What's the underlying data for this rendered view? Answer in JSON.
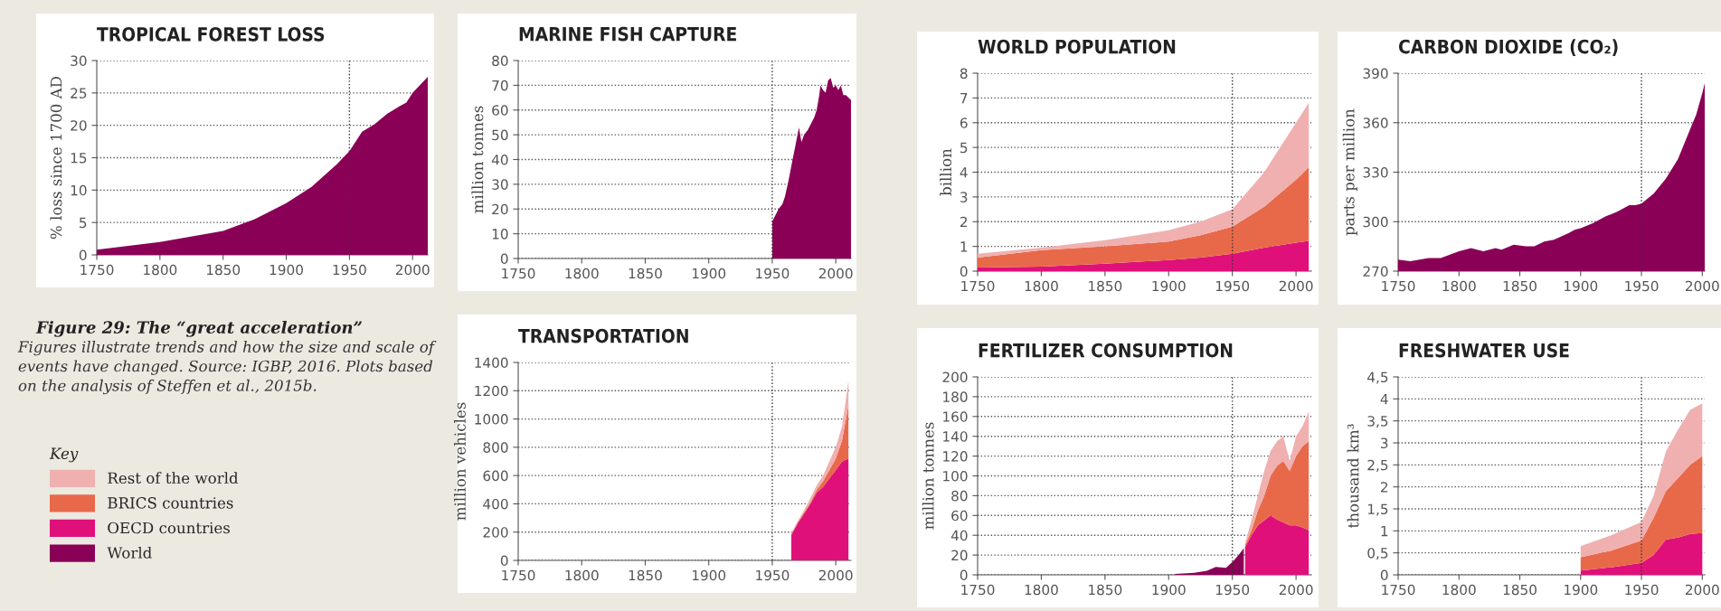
{
  "chart_data": [
    {
      "type": "area",
      "title": "TROPICAL FOREST LOSS",
      "ylabel": "% loss since 1700 AD",
      "xlim": [
        1750,
        2012
      ],
      "ylim": [
        0,
        30
      ],
      "xticks": [
        1750,
        1800,
        1850,
        1900,
        1950,
        2000
      ],
      "yticks": [
        0,
        5,
        10,
        15,
        20,
        25,
        30
      ],
      "grid": "y",
      "ref_lines": [
        {
          "axis": "x",
          "value": 1950,
          "line_style": "dotted"
        }
      ],
      "series": [
        {
          "color": "#8b0057",
          "x": [
            1750,
            1800,
            1850,
            1875,
            1900,
            1920,
            1940,
            1950,
            1960,
            1970,
            1980,
            1990,
            1995,
            2000,
            2012
          ],
          "values": [
            0.8,
            2,
            3.7,
            5.5,
            8,
            10.5,
            14,
            16,
            19,
            20.2,
            21.8,
            23,
            23.5,
            25,
            27.5
          ]
        }
      ]
    },
    {
      "type": "other",
      "title": "Figure 29: The “great acceleration”",
      "annotations": [
        "Figures illustrate trends and how the size and scale of events have changed. Source: IGBP, 2016. Plots based on the analysis of Steffen et al., 2015b."
      ]
    },
    {
      "type": "area",
      "title": "MARINE FISH CAPTURE",
      "ylabel": "million tonnes",
      "xlim": [
        1750,
        2012
      ],
      "ylim": [
        0,
        80
      ],
      "xticks": [
        1750,
        1800,
        1850,
        1900,
        1950,
        2000
      ],
      "yticks": [
        0,
        10,
        20,
        30,
        40,
        50,
        60,
        70,
        80
      ],
      "grid": "y",
      "ref_lines": [
        {
          "axis": "x",
          "value": 1950,
          "line_style": "dotted"
        }
      ],
      "series": [
        {
          "color": "#8b0057",
          "x": [
            1950,
            1952,
            1955,
            1958,
            1960,
            1963,
            1966,
            1968,
            1971,
            1973,
            1975,
            1978,
            1980,
            1983,
            1985,
            1987,
            1988,
            1990,
            1992,
            1994,
            1996,
            1998,
            2000,
            2002,
            2004,
            2006,
            2008,
            2012
          ],
          "values": [
            15,
            17,
            20,
            22,
            25,
            32,
            40,
            45,
            53,
            47,
            50,
            52,
            54,
            57,
            60,
            66,
            70,
            68,
            67,
            72,
            73,
            69,
            70,
            68,
            70,
            66,
            66,
            64
          ]
        }
      ]
    },
    {
      "type": "area",
      "title": "TRANSPORTATION",
      "ylabel": "million vehicles",
      "xlim": [
        1750,
        2012
      ],
      "ylim": [
        0,
        1400
      ],
      "xticks": [
        1750,
        1800,
        1850,
        1900,
        1950,
        2000
      ],
      "yticks": [
        0,
        200,
        400,
        600,
        800,
        1000,
        1200,
        1400
      ],
      "grid": "y",
      "stacked": true,
      "ref_lines": [
        {
          "axis": "x",
          "value": 1950,
          "line_style": "dotted"
        }
      ],
      "x": [
        1965,
        1970,
        1975,
        1980,
        1985,
        1990,
        1995,
        2000,
        2005,
        2010
      ],
      "series": [
        {
          "color": "#e0107a",
          "values": [
            180,
            260,
            330,
            400,
            480,
            520,
            580,
            640,
            700,
            720
          ]
        },
        {
          "color": "#e8694a",
          "values": [
            5,
            8,
            10,
            10,
            20,
            40,
            60,
            80,
            150,
            380
          ]
        },
        {
          "color": "#f0b0b0",
          "values": [
            10,
            10,
            15,
            30,
            30,
            40,
            60,
            80,
            100,
            172
          ]
        }
      ]
    },
    {
      "type": "area",
      "title": "WORLD POPULATION",
      "ylabel": "billion",
      "xlim": [
        1750,
        2012
      ],
      "ylim": [
        0,
        8
      ],
      "xticks": [
        1750,
        1800,
        1850,
        1900,
        1950,
        2000
      ],
      "yticks": [
        0,
        1,
        2,
        3,
        4,
        5,
        6,
        7,
        8
      ],
      "grid": "y",
      "stacked": true,
      "ref_lines": [
        {
          "axis": "x",
          "value": 1950,
          "line_style": "dotted"
        }
      ],
      "x": [
        1750,
        1800,
        1850,
        1900,
        1925,
        1950,
        1975,
        2000,
        2010
      ],
      "series": [
        {
          "color": "#e0107a",
          "values": [
            0.15,
            0.18,
            0.3,
            0.45,
            0.55,
            0.7,
            0.95,
            1.15,
            1.22
          ]
        },
        {
          "color": "#e8694a",
          "values": [
            0.4,
            0.67,
            0.7,
            0.75,
            0.9,
            1.1,
            1.65,
            2.55,
            2.98
          ]
        },
        {
          "color": "#f0b0b0",
          "values": [
            0.15,
            0.1,
            0.25,
            0.45,
            0.55,
            0.7,
            1.4,
            2.3,
            2.6
          ]
        }
      ]
    },
    {
      "type": "area",
      "title": "CARBON DIOXIDE (CO₂)",
      "ylabel": "parts per million",
      "xlim": [
        1750,
        2002
      ],
      "ylim": [
        270,
        390
      ],
      "xticks": [
        1750,
        1800,
        1850,
        1900,
        1950,
        2000
      ],
      "yticks": [
        270,
        300,
        330,
        360,
        390
      ],
      "grid": "y",
      "ref_lines": [
        {
          "axis": "x",
          "value": 1950,
          "line_style": "dotted"
        }
      ],
      "series": [
        {
          "color": "#8b0057",
          "x": [
            1750,
            1760,
            1775,
            1785,
            1800,
            1810,
            1820,
            1830,
            1835,
            1845,
            1855,
            1862,
            1870,
            1878,
            1890,
            1895,
            1900,
            1910,
            1920,
            1930,
            1940,
            1945,
            1950,
            1960,
            1970,
            1980,
            1990,
            1995,
            2000,
            2002
          ],
          "values": [
            277,
            276,
            278,
            278,
            282,
            284,
            282,
            284,
            283,
            286,
            285,
            285,
            288,
            289,
            293,
            295,
            296,
            299,
            303,
            306,
            310,
            310,
            311,
            317,
            326,
            338,
            356,
            365,
            378,
            384
          ]
        }
      ]
    },
    {
      "type": "area",
      "title": "FERTILIZER CONSUMPTION",
      "ylabel": "million tonnes",
      "xlim": [
        1750,
        2012
      ],
      "ylim": [
        0,
        200
      ],
      "xticks": [
        1750,
        1800,
        1850,
        1900,
        1950,
        2000
      ],
      "yticks": [
        0,
        20,
        40,
        60,
        80,
        100,
        120,
        140,
        160,
        180,
        200
      ],
      "grid": "y",
      "stacked": true,
      "legend": "left",
      "legend_title": "Key",
      "ref_lines": [
        {
          "axis": "x",
          "value": 1950,
          "line_style": "dotted"
        }
      ],
      "x": [
        1905,
        1920,
        1930,
        1937,
        1945,
        1950,
        1955,
        1959,
        1960,
        1965,
        1970,
        1975,
        1980,
        1985,
        1990,
        1995,
        2000,
        2005,
        2010
      ],
      "series": [
        {
          "name": "World",
          "color": "#8b0057",
          "values": [
            1,
            2,
            4,
            8,
            7,
            13,
            20,
            27,
            null,
            null,
            null,
            null,
            null,
            null,
            null,
            null,
            null,
            null,
            null
          ]
        },
        {
          "name": "OECD countries",
          "color": "#e0107a",
          "values": [
            null,
            null,
            null,
            null,
            null,
            null,
            null,
            null,
            28,
            40,
            50,
            55,
            60,
            56,
            53,
            50,
            50,
            48,
            45
          ]
        },
        {
          "name": "BRICS countries",
          "color": "#e8694a",
          "values": [
            null,
            null,
            null,
            null,
            null,
            null,
            null,
            null,
            2,
            5,
            15,
            25,
            40,
            54,
            62,
            55,
            70,
            82,
            90
          ]
        },
        {
          "name": "Rest of the world",
          "color": "#f0b0b0",
          "values": [
            null,
            null,
            null,
            null,
            null,
            null,
            null,
            null,
            2,
            10,
            15,
            25,
            25,
            25,
            25,
            10,
            20,
            20,
            30
          ]
        }
      ]
    },
    {
      "type": "area",
      "title": "FRESHWATER USE",
      "ylabel": "thousand km³",
      "xlim": [
        1750,
        2002
      ],
      "ylim": [
        0,
        4.5
      ],
      "xticks": [
        1750,
        1800,
        1850,
        1900,
        1950,
        2000
      ],
      "yticks": [
        0,
        {
          "value": 0.5,
          "label": "0,5"
        },
        1,
        {
          "value": 1.5,
          "label": "1,5"
        },
        2,
        {
          "value": 2.5,
          "label": "2,5"
        },
        3,
        {
          "value": 3.5,
          "label": "3,5"
        },
        4,
        {
          "value": 4.5,
          "label": "4,5"
        }
      ],
      "grid": "y",
      "stacked": true,
      "ref_lines": [
        {
          "axis": "x",
          "value": 1950,
          "line_style": "dotted"
        }
      ],
      "x": [
        1900,
        1925,
        1950,
        1960,
        1970,
        1980,
        1990,
        2000
      ],
      "series": [
        {
          "color": "#e0107a",
          "values": [
            0.1,
            0.17,
            0.27,
            0.45,
            0.8,
            0.85,
            0.93,
            0.95
          ]
        },
        {
          "color": "#e8694a",
          "values": [
            0.3,
            0.38,
            0.51,
            0.85,
            1.1,
            1.35,
            1.57,
            1.75
          ]
        },
        {
          "color": "#f0b0b0",
          "values": [
            0.25,
            0.35,
            0.42,
            0.5,
            0.9,
            1.1,
            1.25,
            1.2
          ]
        }
      ]
    }
  ]
}
